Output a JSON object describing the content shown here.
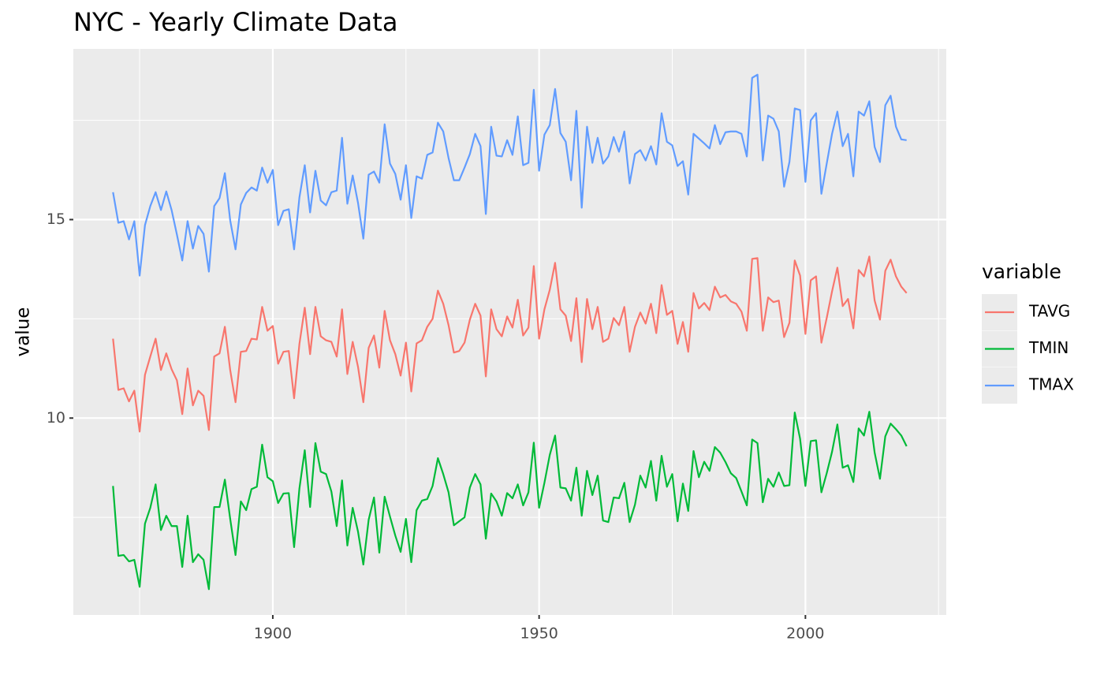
{
  "chart_data": {
    "type": "line",
    "title": "NYC - Yearly Climate Data",
    "ylabel": "value",
    "legend_title": "variable",
    "legend": "right",
    "grid": true,
    "x": [
      1870,
      1871,
      1872,
      1873,
      1874,
      1875,
      1876,
      1877,
      1878,
      1879,
      1880,
      1881,
      1882,
      1883,
      1884,
      1885,
      1886,
      1887,
      1888,
      1889,
      1890,
      1891,
      1892,
      1893,
      1894,
      1895,
      1896,
      1897,
      1898,
      1899,
      1900,
      1901,
      1902,
      1903,
      1904,
      1905,
      1906,
      1907,
      1908,
      1909,
      1910,
      1911,
      1912,
      1913,
      1914,
      1915,
      1916,
      1917,
      1918,
      1919,
      1920,
      1921,
      1922,
      1923,
      1924,
      1925,
      1926,
      1927,
      1928,
      1929,
      1930,
      1931,
      1932,
      1933,
      1934,
      1935,
      1936,
      1937,
      1938,
      1939,
      1940,
      1941,
      1942,
      1943,
      1944,
      1945,
      1946,
      1947,
      1948,
      1949,
      1950,
      1951,
      1952,
      1953,
      1954,
      1955,
      1956,
      1957,
      1958,
      1959,
      1960,
      1961,
      1962,
      1963,
      1964,
      1965,
      1966,
      1967,
      1968,
      1969,
      1970,
      1971,
      1972,
      1973,
      1974,
      1975,
      1976,
      1977,
      1978,
      1979,
      1980,
      1981,
      1982,
      1983,
      1984,
      1985,
      1986,
      1987,
      1988,
      1989,
      1990,
      1991,
      1992,
      1993,
      1994,
      1995,
      1996,
      1997,
      1998,
      1999,
      2000,
      2001,
      2002,
      2003,
      2004,
      2005,
      2006,
      2007,
      2008,
      2009,
      2010,
      2011,
      2012,
      2013,
      2014,
      2015,
      2016,
      2017,
      2018,
      2019
    ],
    "series": [
      {
        "name": "TAVG",
        "color": "#f8766d",
        "values": [
          12.0,
          10.71,
          10.75,
          10.42,
          10.69,
          9.66,
          11.09,
          11.55,
          12.0,
          11.21,
          11.63,
          11.23,
          10.95,
          10.1,
          11.25,
          10.32,
          10.69,
          10.56,
          9.7,
          11.55,
          11.63,
          12.3,
          11.21,
          10.4,
          11.67,
          11.69,
          12.0,
          11.98,
          12.8,
          12.2,
          12.32,
          11.37,
          11.67,
          11.69,
          10.5,
          11.87,
          12.78,
          11.61,
          12.8,
          12.06,
          11.96,
          11.92,
          11.55,
          12.74,
          11.11,
          11.92,
          11.29,
          10.4,
          11.77,
          12.08,
          11.27,
          12.7,
          11.96,
          11.61,
          11.07,
          11.9,
          10.67,
          11.88,
          11.96,
          12.3,
          12.5,
          13.21,
          12.88,
          12.34,
          11.65,
          11.69,
          11.9,
          12.48,
          12.88,
          12.58,
          11.05,
          12.74,
          12.24,
          12.06,
          12.56,
          12.28,
          12.98,
          12.08,
          12.28,
          13.83,
          12.0,
          12.74,
          13.23,
          13.91,
          12.74,
          12.58,
          11.94,
          13.02,
          11.41,
          13.0,
          12.24,
          12.8,
          11.92,
          12.0,
          12.52,
          12.34,
          12.8,
          11.67,
          12.3,
          12.66,
          12.38,
          12.88,
          12.14,
          13.35,
          12.6,
          12.7,
          11.87,
          12.42,
          11.67,
          13.15,
          12.76,
          12.9,
          12.72,
          13.31,
          13.04,
          13.1,
          12.94,
          12.88,
          12.68,
          12.2,
          14.01,
          14.03,
          12.2,
          13.04,
          12.92,
          12.96,
          12.04,
          12.4,
          13.97,
          13.59,
          12.12,
          13.47,
          13.57,
          11.9,
          12.52,
          13.19,
          13.79,
          12.82,
          13.0,
          12.26,
          13.73,
          13.57,
          14.07,
          12.96,
          12.48,
          13.71,
          13.99,
          13.57,
          13.31,
          13.15
        ]
      },
      {
        "name": "TMIN",
        "color": "#00ba38",
        "values": [
          8.29,
          6.53,
          6.55,
          6.39,
          6.43,
          5.75,
          7.34,
          7.74,
          8.33,
          7.18,
          7.54,
          7.28,
          7.28,
          6.25,
          7.54,
          6.37,
          6.57,
          6.43,
          5.69,
          7.76,
          7.76,
          8.45,
          7.46,
          6.55,
          7.9,
          7.68,
          8.21,
          8.27,
          9.33,
          8.51,
          8.41,
          7.86,
          8.1,
          8.11,
          6.75,
          8.23,
          9.19,
          7.76,
          9.37,
          8.65,
          8.59,
          8.15,
          7.28,
          8.43,
          6.79,
          7.74,
          7.14,
          6.31,
          7.44,
          8.0,
          6.61,
          8.02,
          7.52,
          7.04,
          6.63,
          7.46,
          6.37,
          7.68,
          7.92,
          7.96,
          8.29,
          8.99,
          8.59,
          8.13,
          7.3,
          7.4,
          7.5,
          8.25,
          8.59,
          8.33,
          6.96,
          8.1,
          7.9,
          7.54,
          8.11,
          7.98,
          8.33,
          7.8,
          8.13,
          9.38,
          7.74,
          8.37,
          9.07,
          9.56,
          8.25,
          8.23,
          7.92,
          8.75,
          7.54,
          8.67,
          8.06,
          8.55,
          7.42,
          7.38,
          8.0,
          7.98,
          8.37,
          7.38,
          7.82,
          8.55,
          8.25,
          8.92,
          7.92,
          9.05,
          8.27,
          8.59,
          7.4,
          8.35,
          7.66,
          9.17,
          8.51,
          8.9,
          8.67,
          9.27,
          9.13,
          8.89,
          8.61,
          8.49,
          8.15,
          7.8,
          9.46,
          9.37,
          7.88,
          8.47,
          8.27,
          8.63,
          8.29,
          8.31,
          10.14,
          9.48,
          8.29,
          9.42,
          9.44,
          8.13,
          8.61,
          9.15,
          9.84,
          8.75,
          8.81,
          8.39,
          9.74,
          9.56,
          10.16,
          9.13,
          8.47,
          9.54,
          9.86,
          9.72,
          9.56,
          9.29
        ]
      },
      {
        "name": "TMAX",
        "color": "#619cff",
        "values": [
          15.69,
          14.92,
          14.96,
          14.5,
          14.96,
          13.59,
          14.86,
          15.34,
          15.69,
          15.24,
          15.71,
          15.24,
          14.62,
          13.97,
          14.96,
          14.27,
          14.84,
          14.64,
          13.69,
          15.34,
          15.54,
          16.17,
          14.98,
          14.25,
          15.38,
          15.67,
          15.81,
          15.73,
          16.31,
          15.93,
          16.25,
          14.86,
          15.22,
          15.26,
          14.25,
          15.56,
          16.37,
          15.18,
          16.23,
          15.48,
          15.36,
          15.69,
          15.73,
          17.06,
          15.4,
          16.11,
          15.42,
          14.52,
          16.13,
          16.21,
          15.93,
          17.4,
          16.41,
          16.15,
          15.5,
          16.37,
          15.04,
          16.09,
          16.03,
          16.63,
          16.69,
          17.44,
          17.22,
          16.55,
          15.99,
          15.99,
          16.31,
          16.65,
          17.16,
          16.85,
          15.14,
          17.34,
          16.61,
          16.59,
          17.0,
          16.63,
          17.6,
          16.37,
          16.43,
          18.27,
          16.23,
          17.14,
          17.38,
          18.29,
          17.18,
          16.96,
          15.99,
          17.74,
          15.3,
          17.34,
          16.43,
          17.06,
          16.41,
          16.59,
          17.08,
          16.71,
          17.22,
          15.91,
          16.65,
          16.75,
          16.49,
          16.85,
          16.39,
          17.68,
          16.96,
          16.87,
          16.35,
          16.47,
          15.63,
          17.16,
          17.04,
          16.92,
          16.79,
          17.38,
          16.9,
          17.2,
          17.22,
          17.22,
          17.16,
          16.59,
          18.57,
          18.65,
          16.49,
          17.62,
          17.54,
          17.22,
          15.83,
          16.45,
          17.8,
          17.76,
          15.95,
          17.5,
          17.68,
          15.65,
          16.41,
          17.16,
          17.72,
          16.85,
          17.16,
          16.09,
          17.72,
          17.62,
          17.98,
          16.83,
          16.45,
          17.88,
          18.12,
          17.34,
          17.02,
          17.0
        ]
      }
    ],
    "xlim": [
      1862.55,
      2026.45
    ],
    "xticks": [
      1900,
      1950,
      2000
    ],
    "minor_xticks": [
      1875,
      1925,
      1975,
      2025
    ],
    "ylim": [
      5.04,
      19.3
    ],
    "yticks": [
      10,
      15
    ],
    "minor_yticks": [
      7.5,
      12.5,
      17.5
    ]
  }
}
